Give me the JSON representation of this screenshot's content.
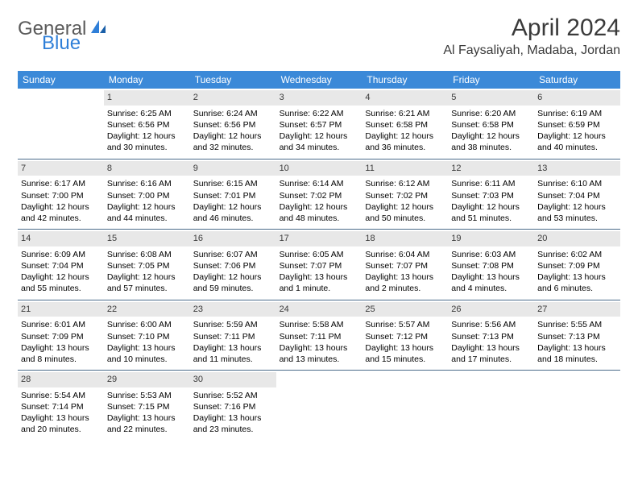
{
  "brand": {
    "part1": "General",
    "part2": "Blue"
  },
  "title": "April 2024",
  "location": "Al Faysaliyah, Madaba, Jordan",
  "colors": {
    "header_band": "#3b89d8",
    "daynum_bg": "#e8e8e8",
    "row_border": "#4a6b8a",
    "logo_gray": "#5a5a5a",
    "logo_blue": "#2f7fd8"
  },
  "weekdays": [
    "Sunday",
    "Monday",
    "Tuesday",
    "Wednesday",
    "Thursday",
    "Friday",
    "Saturday"
  ],
  "weeks": [
    [
      {
        "empty": true
      },
      {
        "num": "1",
        "sunrise": "Sunrise: 6:25 AM",
        "sunset": "Sunset: 6:56 PM",
        "day1": "Daylight: 12 hours",
        "day2": "and 30 minutes."
      },
      {
        "num": "2",
        "sunrise": "Sunrise: 6:24 AM",
        "sunset": "Sunset: 6:56 PM",
        "day1": "Daylight: 12 hours",
        "day2": "and 32 minutes."
      },
      {
        "num": "3",
        "sunrise": "Sunrise: 6:22 AM",
        "sunset": "Sunset: 6:57 PM",
        "day1": "Daylight: 12 hours",
        "day2": "and 34 minutes."
      },
      {
        "num": "4",
        "sunrise": "Sunrise: 6:21 AM",
        "sunset": "Sunset: 6:58 PM",
        "day1": "Daylight: 12 hours",
        "day2": "and 36 minutes."
      },
      {
        "num": "5",
        "sunrise": "Sunrise: 6:20 AM",
        "sunset": "Sunset: 6:58 PM",
        "day1": "Daylight: 12 hours",
        "day2": "and 38 minutes."
      },
      {
        "num": "6",
        "sunrise": "Sunrise: 6:19 AM",
        "sunset": "Sunset: 6:59 PM",
        "day1": "Daylight: 12 hours",
        "day2": "and 40 minutes."
      }
    ],
    [
      {
        "num": "7",
        "sunrise": "Sunrise: 6:17 AM",
        "sunset": "Sunset: 7:00 PM",
        "day1": "Daylight: 12 hours",
        "day2": "and 42 minutes."
      },
      {
        "num": "8",
        "sunrise": "Sunrise: 6:16 AM",
        "sunset": "Sunset: 7:00 PM",
        "day1": "Daylight: 12 hours",
        "day2": "and 44 minutes."
      },
      {
        "num": "9",
        "sunrise": "Sunrise: 6:15 AM",
        "sunset": "Sunset: 7:01 PM",
        "day1": "Daylight: 12 hours",
        "day2": "and 46 minutes."
      },
      {
        "num": "10",
        "sunrise": "Sunrise: 6:14 AM",
        "sunset": "Sunset: 7:02 PM",
        "day1": "Daylight: 12 hours",
        "day2": "and 48 minutes."
      },
      {
        "num": "11",
        "sunrise": "Sunrise: 6:12 AM",
        "sunset": "Sunset: 7:02 PM",
        "day1": "Daylight: 12 hours",
        "day2": "and 50 minutes."
      },
      {
        "num": "12",
        "sunrise": "Sunrise: 6:11 AM",
        "sunset": "Sunset: 7:03 PM",
        "day1": "Daylight: 12 hours",
        "day2": "and 51 minutes."
      },
      {
        "num": "13",
        "sunrise": "Sunrise: 6:10 AM",
        "sunset": "Sunset: 7:04 PM",
        "day1": "Daylight: 12 hours",
        "day2": "and 53 minutes."
      }
    ],
    [
      {
        "num": "14",
        "sunrise": "Sunrise: 6:09 AM",
        "sunset": "Sunset: 7:04 PM",
        "day1": "Daylight: 12 hours",
        "day2": "and 55 minutes."
      },
      {
        "num": "15",
        "sunrise": "Sunrise: 6:08 AM",
        "sunset": "Sunset: 7:05 PM",
        "day1": "Daylight: 12 hours",
        "day2": "and 57 minutes."
      },
      {
        "num": "16",
        "sunrise": "Sunrise: 6:07 AM",
        "sunset": "Sunset: 7:06 PM",
        "day1": "Daylight: 12 hours",
        "day2": "and 59 minutes."
      },
      {
        "num": "17",
        "sunrise": "Sunrise: 6:05 AM",
        "sunset": "Sunset: 7:07 PM",
        "day1": "Daylight: 13 hours",
        "day2": "and 1 minute."
      },
      {
        "num": "18",
        "sunrise": "Sunrise: 6:04 AM",
        "sunset": "Sunset: 7:07 PM",
        "day1": "Daylight: 13 hours",
        "day2": "and 2 minutes."
      },
      {
        "num": "19",
        "sunrise": "Sunrise: 6:03 AM",
        "sunset": "Sunset: 7:08 PM",
        "day1": "Daylight: 13 hours",
        "day2": "and 4 minutes."
      },
      {
        "num": "20",
        "sunrise": "Sunrise: 6:02 AM",
        "sunset": "Sunset: 7:09 PM",
        "day1": "Daylight: 13 hours",
        "day2": "and 6 minutes."
      }
    ],
    [
      {
        "num": "21",
        "sunrise": "Sunrise: 6:01 AM",
        "sunset": "Sunset: 7:09 PM",
        "day1": "Daylight: 13 hours",
        "day2": "and 8 minutes."
      },
      {
        "num": "22",
        "sunrise": "Sunrise: 6:00 AM",
        "sunset": "Sunset: 7:10 PM",
        "day1": "Daylight: 13 hours",
        "day2": "and 10 minutes."
      },
      {
        "num": "23",
        "sunrise": "Sunrise: 5:59 AM",
        "sunset": "Sunset: 7:11 PM",
        "day1": "Daylight: 13 hours",
        "day2": "and 11 minutes."
      },
      {
        "num": "24",
        "sunrise": "Sunrise: 5:58 AM",
        "sunset": "Sunset: 7:11 PM",
        "day1": "Daylight: 13 hours",
        "day2": "and 13 minutes."
      },
      {
        "num": "25",
        "sunrise": "Sunrise: 5:57 AM",
        "sunset": "Sunset: 7:12 PM",
        "day1": "Daylight: 13 hours",
        "day2": "and 15 minutes."
      },
      {
        "num": "26",
        "sunrise": "Sunrise: 5:56 AM",
        "sunset": "Sunset: 7:13 PM",
        "day1": "Daylight: 13 hours",
        "day2": "and 17 minutes."
      },
      {
        "num": "27",
        "sunrise": "Sunrise: 5:55 AM",
        "sunset": "Sunset: 7:13 PM",
        "day1": "Daylight: 13 hours",
        "day2": "and 18 minutes."
      }
    ],
    [
      {
        "num": "28",
        "sunrise": "Sunrise: 5:54 AM",
        "sunset": "Sunset: 7:14 PM",
        "day1": "Daylight: 13 hours",
        "day2": "and 20 minutes."
      },
      {
        "num": "29",
        "sunrise": "Sunrise: 5:53 AM",
        "sunset": "Sunset: 7:15 PM",
        "day1": "Daylight: 13 hours",
        "day2": "and 22 minutes."
      },
      {
        "num": "30",
        "sunrise": "Sunrise: 5:52 AM",
        "sunset": "Sunset: 7:16 PM",
        "day1": "Daylight: 13 hours",
        "day2": "and 23 minutes."
      },
      {
        "empty": true
      },
      {
        "empty": true
      },
      {
        "empty": true
      },
      {
        "empty": true
      }
    ]
  ]
}
